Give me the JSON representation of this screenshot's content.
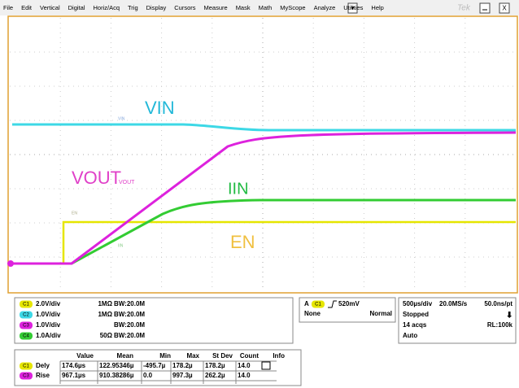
{
  "menu": {
    "items": [
      "File",
      "Edit",
      "Vertical",
      "Digital",
      "Horiz/Acq",
      "Trig",
      "Display",
      "Cursors",
      "Measure",
      "Mask",
      "Math",
      "MyScope",
      "Analyze",
      "Utilities",
      "Help"
    ],
    "logo": "Tek"
  },
  "trace_labels": {
    "vin": "VIN",
    "vout": "VOUT",
    "vout_small": "VOUT",
    "iin": "IIN",
    "en": "EN",
    "vin_small": "VIN",
    "en_small": "EN",
    "iin_small": "IIN"
  },
  "channels": [
    {
      "badge": "C1",
      "scale": "2.0V/div",
      "impedance": "1MΩ",
      "bandwidth": "BW:20.0M"
    },
    {
      "badge": "C2",
      "scale": "1.0V/div",
      "impedance": "1MΩ",
      "bandwidth": "BW:20.0M"
    },
    {
      "badge": "C3",
      "scale": "1.0V/div",
      "impedance": "",
      "bandwidth": "BW:20.0M"
    },
    {
      "badge": "C4",
      "scale": "1.0A/div",
      "impedance": "50Ω",
      "bandwidth": "BW:20.0M"
    }
  ],
  "trigger": {
    "mode": "A",
    "source": "C1",
    "level": "520mV",
    "coupling": "None",
    "type": "Normal"
  },
  "horizontal": {
    "scale": "500µs/div",
    "rate": "20.0MS/s",
    "resolution": "50.0ns/pt",
    "state": "Stopped",
    "acqs": "14 acqs",
    "record": "RL:100k",
    "mode": "Auto"
  },
  "measurements": {
    "headers": [
      "Value",
      "Mean",
      "Min",
      "Max",
      "St Dev",
      "Count",
      "Info"
    ],
    "rows": [
      {
        "badge": "C1",
        "name": "Dely",
        "cells": [
          "174.6µs",
          "122.95346µ",
          "-495.7µ",
          "178.2µ",
          "178.2µ",
          "14.0"
        ]
      },
      {
        "badge": "C3",
        "name": "Rise",
        "cells": [
          "967.1µs",
          "910.38286µ",
          "0.0",
          "997.3µ",
          "262.2µ",
          "14.0"
        ]
      }
    ]
  }
}
